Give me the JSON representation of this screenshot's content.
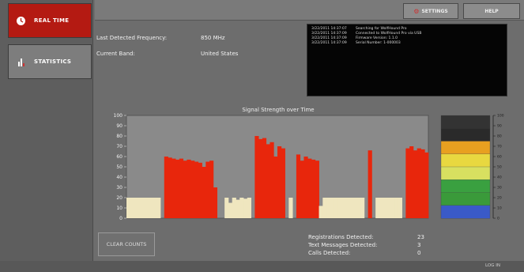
{
  "sidebar": {
    "items": [
      {
        "label": "REAL TIME",
        "icon": "clock-icon",
        "active": true
      },
      {
        "label": "STATISTICS",
        "icon": "bar-chart-icon",
        "active": false
      }
    ]
  },
  "toolbar": {
    "settings_label": "SETTINGS",
    "help_label": "HELP"
  },
  "info": {
    "last_freq_label": "Last Detected Frequency:",
    "last_freq_value": "850 MHz",
    "band_label": "Current Band:",
    "band_value": "United States"
  },
  "log": [
    {
      "time": "3/22/2011 14:37:07",
      "msg": "Searching for WolfHound Pro"
    },
    {
      "time": "3/22/2011 14:37:09",
      "msg": "Connected to WolfHound Pro via USB"
    },
    {
      "time": "3/22/2011 14:37:09",
      "msg": "Firmware Version: 1.1.0"
    },
    {
      "time": "3/22/2011 14:37:09",
      "msg": "Serial Number: 1-000003"
    }
  ],
  "counts": [
    {
      "label": "Registrations Detected:",
      "value": "23"
    },
    {
      "label": "Text Messages Detected:",
      "value": "3"
    },
    {
      "label": "Calls Detected:",
      "value": "0"
    }
  ],
  "clear_counts_label": "CLEAR COUNTS",
  "status_text": "LOG IN",
  "colors": {
    "active_nav": "#b41a12",
    "signal_high": "#e8260c",
    "signal_low": "#efe6bf",
    "legend": [
      "#333333",
      "#2a2a2a",
      "#e8a020",
      "#e8d840",
      "#d8e060",
      "#3aa040",
      "#3a9a3a",
      "#3a5ac8"
    ]
  },
  "chart_data": {
    "type": "area",
    "title": "Signal Strength over Time",
    "xlabel": "",
    "ylabel": "",
    "ylim": [
      0,
      100
    ],
    "yticks": [
      0,
      10,
      20,
      30,
      40,
      50,
      60,
      70,
      80,
      90,
      100
    ],
    "grid": false,
    "series": [
      {
        "name": "",
        "values": [
          20,
          20,
          20,
          20,
          20,
          20,
          20,
          20,
          20,
          0,
          60,
          59,
          58,
          57,
          58,
          56,
          57,
          56,
          55,
          54,
          50,
          55,
          56,
          30,
          0,
          0,
          20,
          15,
          20,
          18,
          20,
          19,
          20,
          0,
          80,
          77,
          78,
          72,
          74,
          60,
          70,
          68,
          0,
          20,
          0,
          62,
          56,
          60,
          58,
          57,
          56,
          12,
          20,
          20,
          20,
          20,
          20,
          20,
          20,
          20,
          20,
          20,
          20,
          0,
          66,
          0,
          20,
          20,
          20,
          20,
          20,
          20,
          20,
          0,
          68,
          70,
          66,
          68,
          67,
          64
        ]
      }
    ],
    "legend_scale": {
      "ticks": [
        0,
        10,
        20,
        30,
        40,
        50,
        60,
        70,
        80,
        90,
        100
      ]
    }
  }
}
